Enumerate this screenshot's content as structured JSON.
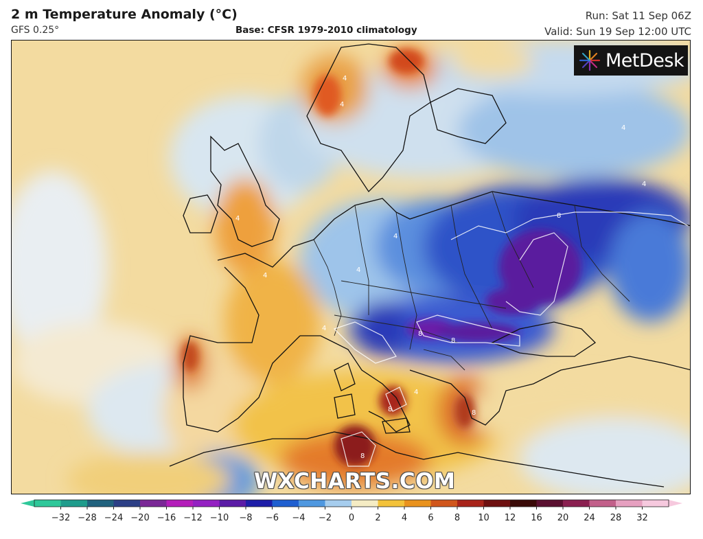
{
  "header": {
    "title": "2 m Temperature Anomaly (°C)",
    "model": "GFS 0.25°",
    "base": "Base: CFSR 1979-2010 climatology",
    "run": "Run: Sat 11 Sep 06Z",
    "valid": "Valid: Sun 19 Sep 12:00 UTC"
  },
  "branding": {
    "logo_text": "MetDesk",
    "watermark": "WXCHARTS.COM"
  },
  "map": {
    "region": "Europe",
    "contour_labels": [
      "4",
      "4",
      "4",
      "4",
      "4",
      "4",
      "4",
      "4",
      "8",
      "8",
      "8",
      "8",
      "8",
      "8",
      "4",
      "4"
    ]
  },
  "colorbar": {
    "ticks": [
      "−32",
      "−28",
      "−24",
      "−20",
      "−16",
      "−12",
      "−10",
      "−8",
      "−6",
      "−4",
      "−2",
      "0",
      "2",
      "4",
      "6",
      "8",
      "10",
      "12",
      "16",
      "20",
      "24",
      "28",
      "32"
    ],
    "colors": [
      "#2fc89a",
      "#1f9c8c",
      "#21627e",
      "#2c3f86",
      "#7a2896",
      "#b41dba",
      "#9421c2",
      "#5b1ca6",
      "#1e1ea8",
      "#1f5fd0",
      "#4f98e0",
      "#a6cdee",
      "#f5ecc4",
      "#f3c23a",
      "#e9921e",
      "#d0561c",
      "#a8241a",
      "#6e1010",
      "#3a0a08",
      "#5a1030",
      "#8a2050",
      "#c2608a",
      "#e6a0c0",
      "#f6c9de"
    ]
  }
}
